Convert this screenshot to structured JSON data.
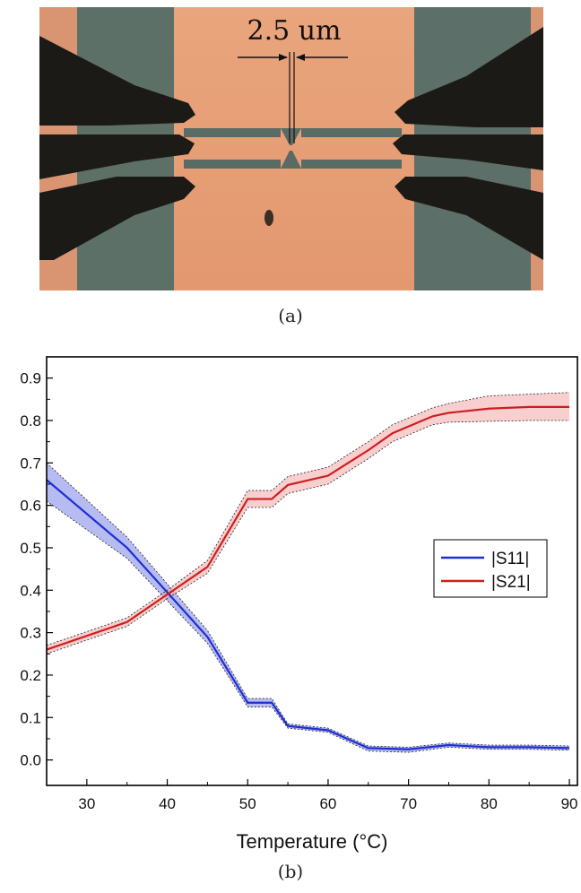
{
  "figure": {
    "panel_a": {
      "caption": "(a)",
      "scale_label": "2.5 um"
    },
    "panel_b": {
      "caption": "(b)"
    }
  },
  "chart_data": {
    "type": "line",
    "xlabel": "Temperature (°C)",
    "ylabel": "",
    "xlim": [
      25,
      91
    ],
    "ylim": [
      -0.06,
      0.95
    ],
    "xticks": [
      30,
      40,
      50,
      60,
      70,
      80,
      90
    ],
    "yticks": [
      0.0,
      0.1,
      0.2,
      0.3,
      0.4,
      0.5,
      0.6,
      0.7,
      0.8,
      0.9
    ],
    "ytick_labels": [
      "0.0",
      "0.1",
      "0.2",
      "0.3",
      "0.4",
      "0.5",
      "0.6",
      "0.7",
      "0.8",
      "0.9"
    ],
    "legend_position": "right",
    "grid": false,
    "series": [
      {
        "name": "|S11|",
        "color": "#1f2fd0",
        "band_color": "#7a83e8",
        "x": [
          25,
          35,
          45,
          50,
          53,
          55,
          60,
          65,
          70,
          75,
          80,
          85,
          90
        ],
        "y": [
          0.66,
          0.5,
          0.29,
          0.135,
          0.135,
          0.08,
          0.07,
          0.028,
          0.025,
          0.035,
          0.03,
          0.03,
          0.028
        ],
        "upper": [
          0.7,
          0.525,
          0.305,
          0.145,
          0.145,
          0.085,
          0.075,
          0.033,
          0.03,
          0.04,
          0.035,
          0.035,
          0.033
        ],
        "lower": [
          0.61,
          0.475,
          0.275,
          0.125,
          0.125,
          0.075,
          0.065,
          0.021,
          0.018,
          0.03,
          0.025,
          0.025,
          0.023
        ]
      },
      {
        "name": "|S21|",
        "color": "#cc1f1f",
        "band_color": "#f3a5a5",
        "x": [
          25,
          35,
          40,
          45,
          50,
          53,
          55,
          60,
          65,
          68,
          73,
          75,
          80,
          85,
          90
        ],
        "y": [
          0.26,
          0.325,
          0.39,
          0.455,
          0.615,
          0.615,
          0.648,
          0.67,
          0.73,
          0.77,
          0.81,
          0.818,
          0.828,
          0.832,
          0.832
        ],
        "upper": [
          0.27,
          0.335,
          0.4,
          0.47,
          0.635,
          0.635,
          0.668,
          0.69,
          0.75,
          0.79,
          0.83,
          0.84,
          0.858,
          0.862,
          0.866
        ],
        "lower": [
          0.25,
          0.315,
          0.38,
          0.44,
          0.595,
          0.595,
          0.628,
          0.65,
          0.71,
          0.75,
          0.79,
          0.796,
          0.798,
          0.8,
          0.8
        ]
      }
    ]
  }
}
